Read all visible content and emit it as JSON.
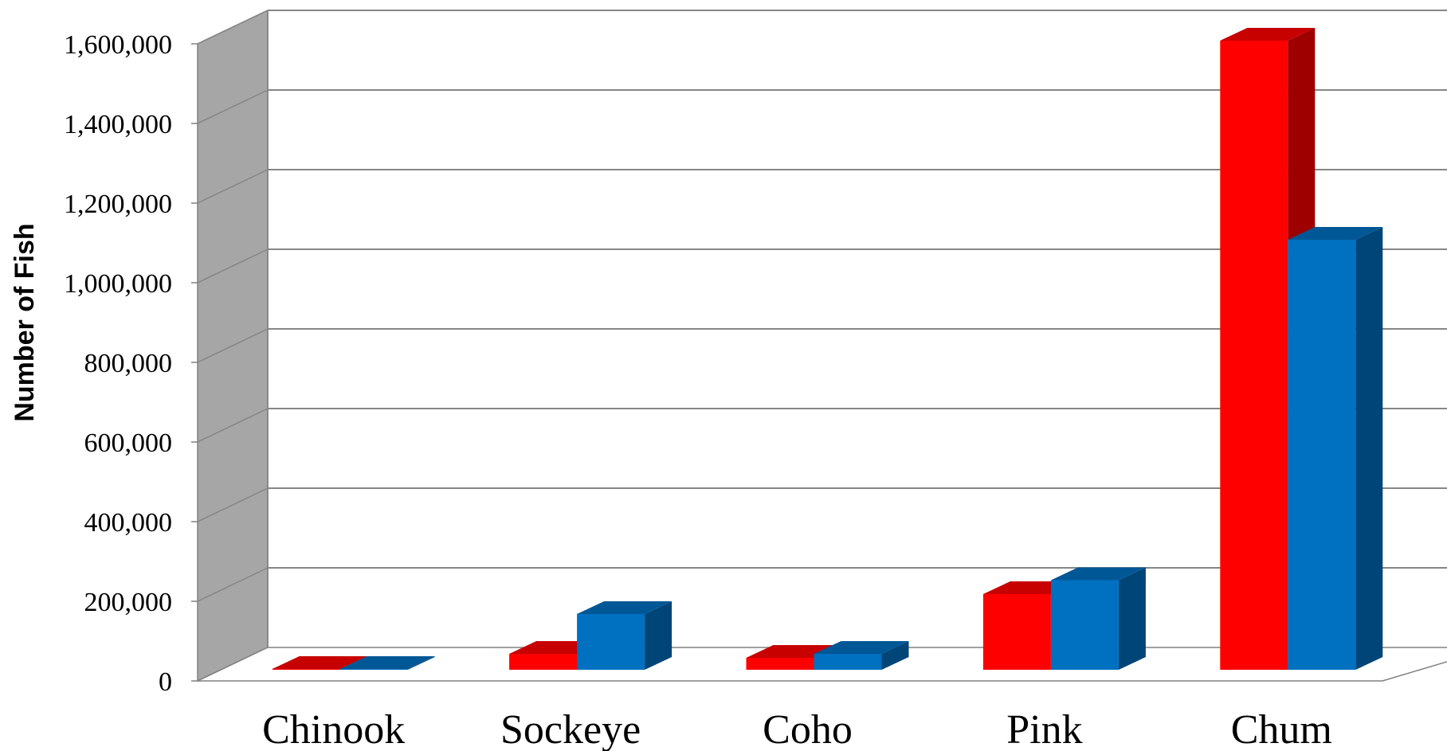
{
  "chart_data": {
    "type": "bar",
    "title": "",
    "xlabel": "",
    "ylabel": "Number of Fish",
    "categories": [
      "Chinook",
      "Sockeye",
      "Coho",
      "Pink",
      "Chum"
    ],
    "series": [
      {
        "values": [
          2000,
          40000,
          30000,
          190000,
          1580000
        ],
        "color": "#ff0000"
      },
      {
        "values": [
          2000,
          140000,
          40000,
          225000,
          1080000
        ],
        "color": "#0070c0"
      }
    ],
    "y_ticks": [
      0,
      200000,
      400000,
      600000,
      800000,
      1000000,
      1200000,
      1400000,
      1600000
    ],
    "y_tick_labels": [
      "0",
      "200,000",
      "400,000",
      "600,000",
      "800,000",
      "1,000,000",
      "1,200,000",
      "1,400,000",
      "1,600,000"
    ],
    "ylim": [
      0,
      1600000
    ],
    "grid": true,
    "legend": "none",
    "style": "3d-clustered-column"
  }
}
